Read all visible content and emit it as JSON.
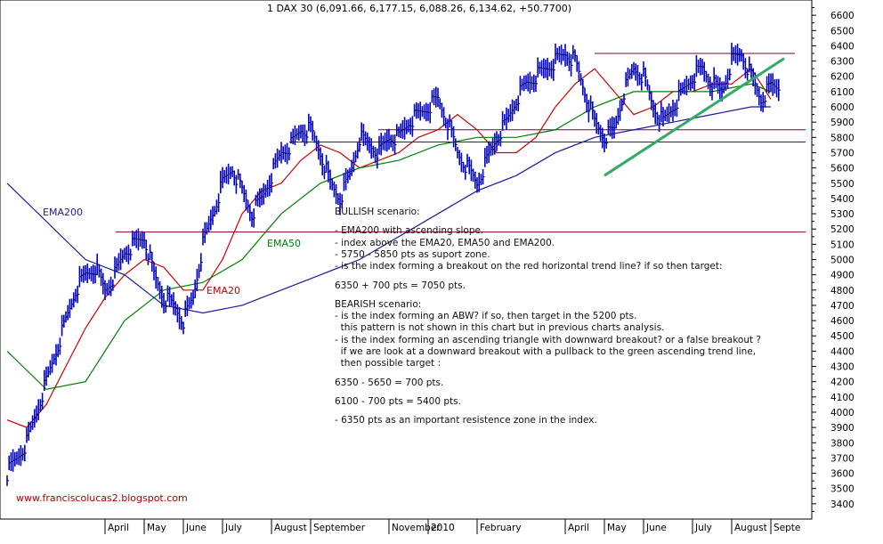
{
  "header": "1 DAX 30 (6,091.66, 6,177.15, 6,088.26, 6,134.62, +50.7700)",
  "website": "www.franciscolucas2.blogspot.com",
  "colors": {
    "price": "#0000cc",
    "ema20": "#cc0000",
    "ema50": "#008000",
    "ema200": "#1a1aa0",
    "resistance": "#7a0040",
    "trendline": "#33aa66"
  },
  "chart_data": {
    "type": "line",
    "ylim": [
      3300,
      6700
    ],
    "yticks": [
      3400,
      3500,
      3600,
      3700,
      3800,
      3900,
      4000,
      4100,
      4200,
      4300,
      4400,
      4500,
      4600,
      4700,
      4800,
      4900,
      5000,
      5100,
      5200,
      5300,
      5400,
      5500,
      5600,
      5700,
      5800,
      5900,
      6000,
      6100,
      6200,
      6300,
      6400,
      6500,
      6600
    ],
    "x_labels": [
      "April",
      "May",
      "June",
      "July",
      "August",
      "September",
      "November",
      "2010",
      "February",
      "April",
      "May",
      "June",
      "July",
      "August",
      "Septe"
    ],
    "x_positions": [
      10,
      14,
      18,
      22,
      27,
      31,
      39,
      43,
      48,
      57,
      61,
      65,
      70,
      74,
      78
    ],
    "x_range": [
      0,
      80
    ],
    "series": [
      {
        "name": "DAX 30",
        "style": "bars",
        "x": [
          0,
          1,
          2,
          3,
          4,
          5,
          6,
          7,
          8,
          9,
          10,
          11,
          12,
          13,
          14,
          15,
          16,
          17,
          18,
          19,
          20,
          21,
          22,
          23,
          24,
          25,
          26,
          27,
          28,
          29,
          30,
          31,
          32,
          33,
          34,
          35,
          36,
          37,
          38,
          39,
          40,
          41,
          42,
          43,
          44,
          45,
          46,
          47,
          48,
          49,
          50,
          51,
          52,
          53,
          54,
          55,
          56,
          57,
          58,
          59,
          60,
          61,
          62,
          63,
          64,
          65,
          66,
          67,
          68,
          69,
          70,
          71,
          72,
          73,
          74,
          75,
          76,
          77,
          78
        ],
        "values": [
          3600,
          3700,
          3800,
          4000,
          4200,
          4400,
          4600,
          4800,
          4900,
          4950,
          4800,
          4900,
          5050,
          5100,
          5150,
          4900,
          4750,
          4700,
          4600,
          4750,
          5100,
          5300,
          5500,
          5600,
          5450,
          5300,
          5400,
          5550,
          5700,
          5750,
          5850,
          5850,
          5700,
          5500,
          5400,
          5550,
          5800,
          5750,
          5700,
          5800,
          5800,
          5900,
          5950,
          6000,
          6050,
          5900,
          5700,
          5600,
          5500,
          5650,
          5800,
          5900,
          6050,
          6150,
          6200,
          6250,
          6300,
          6350,
          6300,
          6100,
          5900,
          5800,
          5850,
          6100,
          6250,
          6200,
          6000,
          5900,
          6000,
          6100,
          6200,
          6250,
          6150,
          6100,
          6300,
          6350,
          6200,
          6050,
          6134
        ]
      },
      {
        "name": "EMA20",
        "x": [
          0,
          2,
          4,
          6,
          8,
          10,
          12,
          14,
          16,
          18,
          20,
          22,
          24,
          26,
          28,
          30,
          32,
          34,
          36,
          38,
          40,
          42,
          44,
          46,
          48,
          50,
          52,
          54,
          56,
          58,
          60,
          62,
          64,
          66,
          68,
          70,
          72,
          74,
          76,
          78
        ],
        "values": [
          3950,
          3900,
          4050,
          4300,
          4550,
          4750,
          4900,
          5000,
          4950,
          4800,
          4800,
          5000,
          5300,
          5450,
          5500,
          5650,
          5750,
          5700,
          5600,
          5650,
          5700,
          5800,
          5850,
          5950,
          5850,
          5700,
          5700,
          5800,
          6000,
          6150,
          6250,
          6100,
          5950,
          6000,
          6100,
          6100,
          6150,
          6150,
          6250,
          6050
        ]
      },
      {
        "name": "EMA50",
        "x": [
          0,
          4,
          8,
          12,
          16,
          20,
          24,
          28,
          32,
          36,
          40,
          44,
          48,
          52,
          56,
          60,
          64,
          68,
          72,
          76,
          78
        ],
        "values": [
          4400,
          4150,
          4200,
          4600,
          4800,
          4850,
          5000,
          5300,
          5500,
          5600,
          5650,
          5750,
          5800,
          5800,
          5850,
          6000,
          6100,
          6100,
          6100,
          6150,
          6100
        ]
      },
      {
        "name": "EMA200",
        "x": [
          0,
          4,
          8,
          12,
          16,
          20,
          24,
          28,
          32,
          36,
          40,
          44,
          48,
          52,
          56,
          60,
          64,
          68,
          72,
          76,
          78
        ],
        "values": [
          5500,
          5250,
          5000,
          4900,
          4700,
          4650,
          4700,
          4800,
          4900,
          5000,
          5150,
          5300,
          5450,
          5550,
          5700,
          5800,
          5850,
          5900,
          5950,
          6000,
          6000
        ]
      }
    ],
    "annotations": [
      {
        "text": "EMA200",
        "color": "#1a1aa0"
      },
      {
        "text": "EMA50",
        "color": "#008000"
      },
      {
        "text": "EMA20",
        "color": "#cc0000"
      }
    ]
  },
  "horizontal_lines": [
    5180,
    5770,
    5850,
    6350
  ],
  "trendline": {
    "x": [
      61,
      78
    ],
    "values": [
      5550,
      6230
    ]
  },
  "scenario_text": [
    "BULLISH scenario:",
    "",
    "- EMA200 with ascending slope.",
    "- index above the EMA20, EMA50 and EMA200.",
    "- 5750 - 5850 pts as suport zone.",
    "- is the index forming a breakout on the red horizontal trend line? if so then target:",
    "",
    "6350 + 700 pts = 7050 pts.",
    "",
    "BEARISH scenario:",
    "- is the index forming an ABW? if so, then target in the 5200 pts.",
    "  this pattern is not shown in this chart but in previous charts analysis.",
    "- is the index forming an ascending triangle with downward breakout? or a false breakout ?",
    "  if we are look at a downward breakout with a pullback to the green ascending trend line,",
    "  then possible target :",
    "",
    "6350 - 5650 = 700 pts.",
    "",
    "6100 - 700 pts = 5400 pts.",
    "",
    "- 6350 pts as an important resistence zone in the index."
  ]
}
